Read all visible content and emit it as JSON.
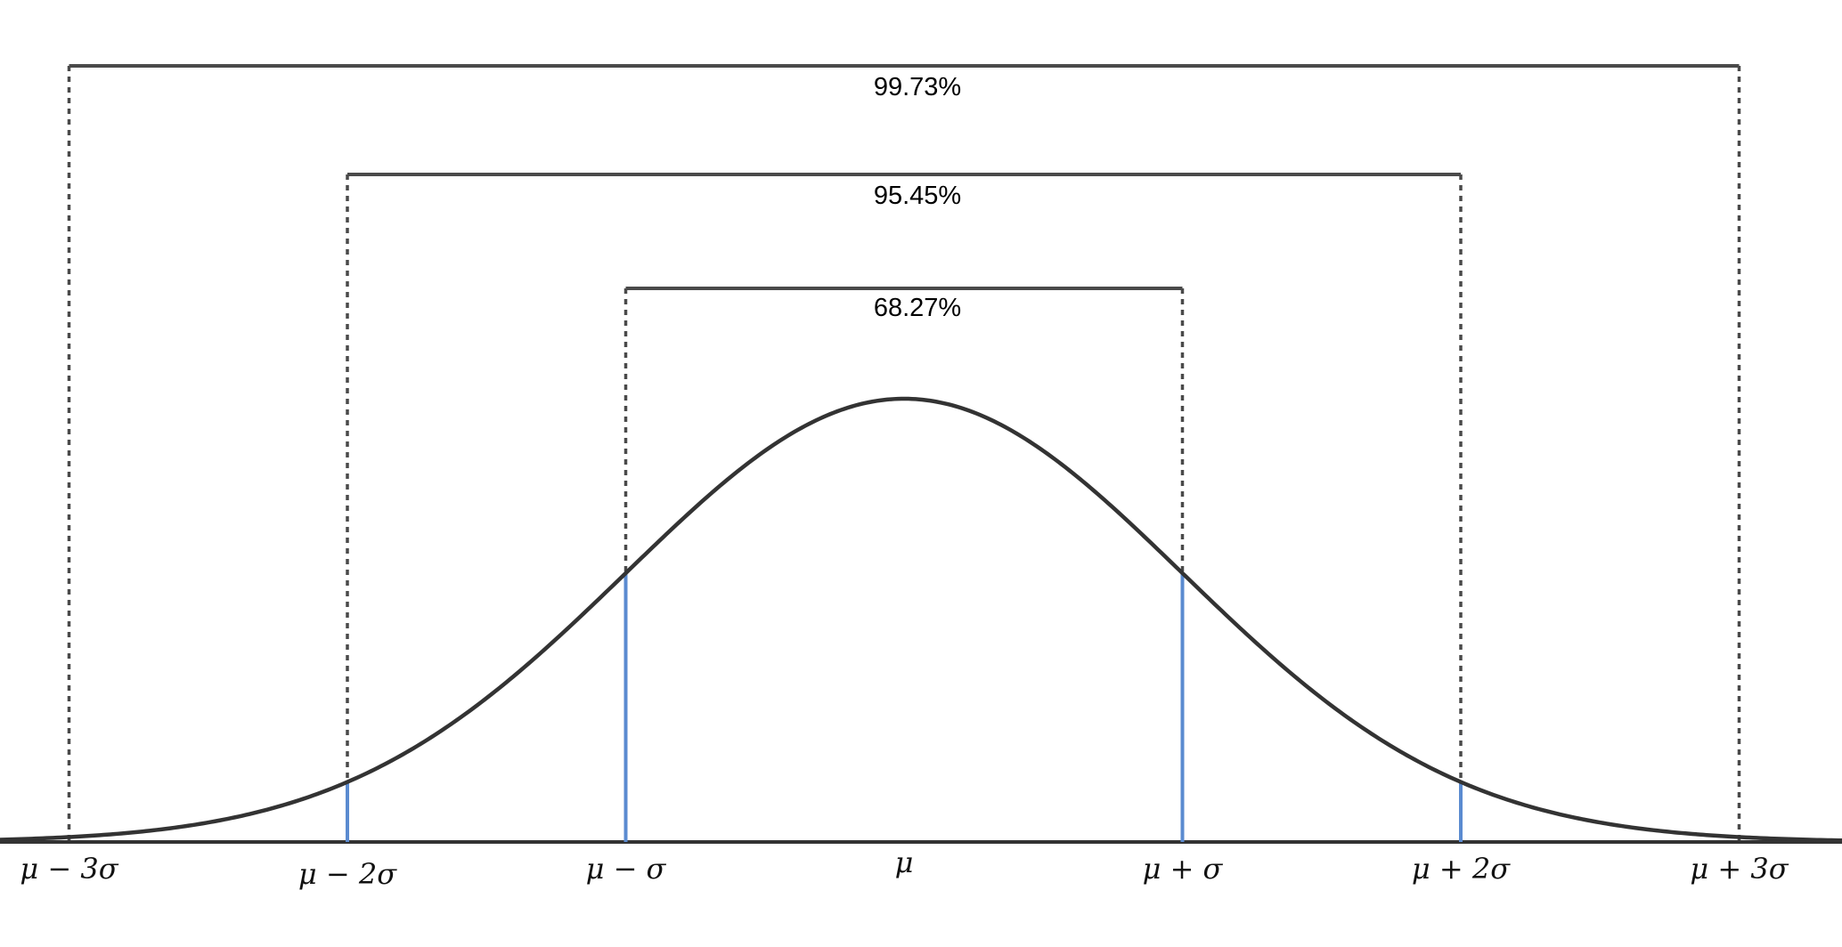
{
  "diagram": {
    "intervals": [
      {
        "k": 1,
        "label": "68.27%"
      },
      {
        "k": 2,
        "label": "95.45%"
      },
      {
        "k": 3,
        "label": "99.73%"
      }
    ],
    "tick_labels": [
      {
        "k": -3,
        "label": "μ − 3σ"
      },
      {
        "k": -2,
        "label": "μ − 2σ"
      },
      {
        "k": -1,
        "label": "μ − σ"
      },
      {
        "k": 0,
        "label": "μ"
      },
      {
        "k": 1,
        "label": "μ + σ"
      },
      {
        "k": 2,
        "label": "μ + 2σ"
      },
      {
        "k": 3,
        "label": "μ + 3σ"
      }
    ],
    "colors": {
      "curve": "#333333",
      "bracket": "#4a4a4a",
      "sigma_lines": "#5b8bd0"
    }
  }
}
